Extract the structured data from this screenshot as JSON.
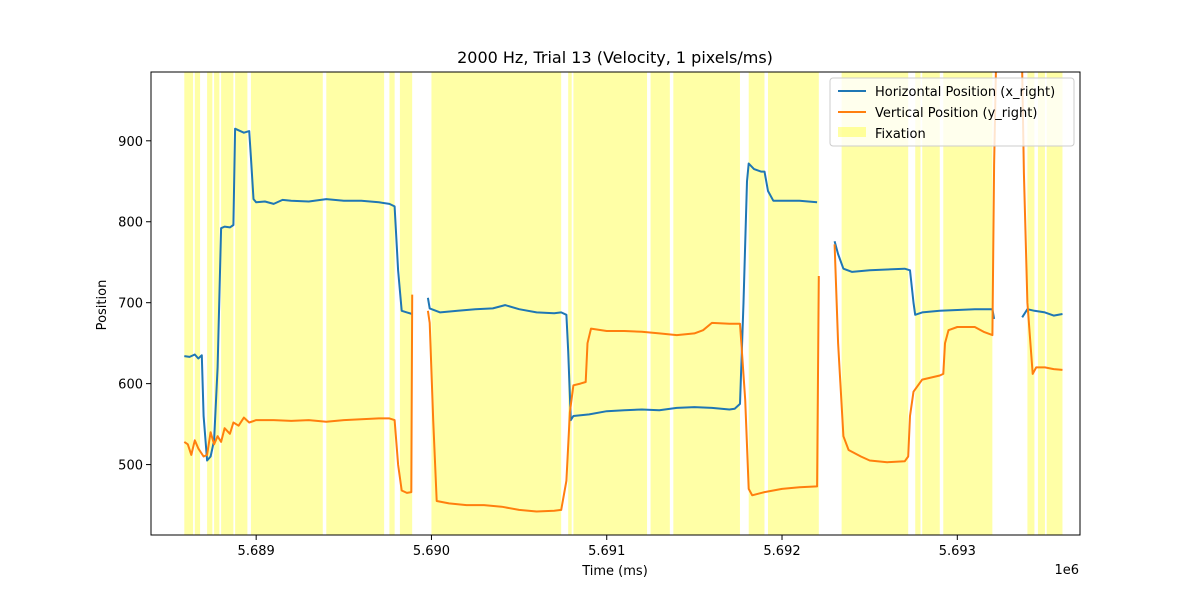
{
  "chart_data": {
    "type": "line",
    "title": "2000 Hz, Trial 13 (Velocity, 1 pixels/ms)",
    "xlabel": "Time (ms)",
    "ylabel": "Position",
    "x_offset_label": "1e6",
    "xlim": [
      5688400,
      5693700
    ],
    "ylim": [
      413,
      985
    ],
    "x_ticks": [
      5689000,
      5690000,
      5691000,
      5692000,
      5693000
    ],
    "x_tick_labels": [
      "5.689",
      "5.690",
      "5.691",
      "5.692",
      "5.693"
    ],
    "y_ticks": [
      500,
      600,
      700,
      800,
      900
    ],
    "y_tick_labels": [
      "500",
      "600",
      "700",
      "800",
      "900"
    ],
    "grid": false,
    "legend_position": "top-right",
    "series": [
      {
        "name": "Horizontal Position (x_right)",
        "color": "#1f77b4",
        "segments": [
          [
            [
              5688590,
              634
            ],
            [
              5688620,
              633
            ],
            [
              5688650,
              636
            ],
            [
              5688670,
              631
            ],
            [
              5688690,
              635
            ],
            [
              5688700,
              560
            ],
            [
              5688720,
              505
            ],
            [
              5688740,
              510
            ],
            [
              5688760,
              530
            ],
            [
              5688780,
              620
            ],
            [
              5688800,
              792
            ],
            [
              5688820,
              794
            ],
            [
              5688850,
              793
            ],
            [
              5688870,
              796
            ],
            [
              5688880,
              915
            ],
            [
              5688900,
              913
            ],
            [
              5688930,
              910
            ],
            [
              5688960,
              912
            ],
            [
              5688970,
              880
            ],
            [
              5688985,
              828
            ],
            [
              5689000,
              824
            ],
            [
              5689050,
              825
            ],
            [
              5689100,
              822
            ],
            [
              5689150,
              827
            ],
            [
              5689200,
              826
            ],
            [
              5689300,
              825
            ],
            [
              5689400,
              828
            ],
            [
              5689500,
              826
            ],
            [
              5689600,
              826
            ],
            [
              5689700,
              824
            ],
            [
              5689760,
              822
            ],
            [
              5689790,
              819
            ],
            [
              5689810,
              740
            ],
            [
              5689830,
              690
            ],
            [
              5689860,
              688
            ],
            [
              5689890,
              686
            ]
          ],
          [
            [
              5689980,
              706
            ],
            [
              5689990,
              693
            ],
            [
              5690050,
              688
            ],
            [
              5690150,
              690
            ],
            [
              5690250,
              692
            ],
            [
              5690350,
              693
            ],
            [
              5690420,
              697
            ],
            [
              5690500,
              692
            ],
            [
              5690600,
              688
            ],
            [
              5690700,
              687
            ],
            [
              5690740,
              688
            ],
            [
              5690770,
              685
            ],
            [
              5690780,
              640
            ],
            [
              5690795,
              555
            ],
            [
              5690810,
              560
            ],
            [
              5690900,
              562
            ],
            [
              5691000,
              566
            ],
            [
              5691100,
              567
            ],
            [
              5691200,
              568
            ],
            [
              5691300,
              567
            ],
            [
              5691400,
              570
            ],
            [
              5691500,
              571
            ],
            [
              5691600,
              570
            ],
            [
              5691700,
              568
            ],
            [
              5691730,
              569
            ],
            [
              5691760,
              575
            ],
            [
              5691780,
              700
            ],
            [
              5691800,
              850
            ],
            [
              5691810,
              872
            ],
            [
              5691840,
              865
            ],
            [
              5691880,
              862
            ],
            [
              5691900,
              862
            ],
            [
              5691920,
              838
            ],
            [
              5691950,
              826
            ],
            [
              5692000,
              826
            ],
            [
              5692100,
              826
            ],
            [
              5692200,
              824
            ]
          ]
        ]
      },
      {
        "name": "Vertical Position (y_right)",
        "color": "#ff7f0e",
        "segments": [
          [
            [
              5688590,
              528
            ],
            [
              5688610,
              525
            ],
            [
              5688630,
              512
            ],
            [
              5688650,
              530
            ],
            [
              5688670,
              520
            ],
            [
              5688700,
              510
            ],
            [
              5688720,
              512
            ],
            [
              5688740,
              540
            ],
            [
              5688760,
              525
            ],
            [
              5688780,
              535
            ],
            [
              5688800,
              528
            ],
            [
              5688820,
              545
            ],
            [
              5688850,
              538
            ],
            [
              5688870,
              552
            ],
            [
              5688900,
              548
            ],
            [
              5688930,
              558
            ],
            [
              5688960,
              552
            ],
            [
              5689000,
              555
            ],
            [
              5689100,
              555
            ],
            [
              5689200,
              554
            ],
            [
              5689300,
              555
            ],
            [
              5689400,
              553
            ],
            [
              5689500,
              555
            ],
            [
              5689600,
              556
            ],
            [
              5689700,
              557
            ],
            [
              5689760,
              557
            ],
            [
              5689790,
              555
            ],
            [
              5689810,
              500
            ],
            [
              5689830,
              468
            ],
            [
              5689860,
              465
            ],
            [
              5689885,
              466
            ],
            [
              5689890,
              710
            ]
          ],
          [
            [
              5689980,
              690
            ],
            [
              5689990,
              675
            ],
            [
              5690010,
              555
            ],
            [
              5690030,
              455
            ],
            [
              5690100,
              452
            ],
            [
              5690200,
              450
            ],
            [
              5690300,
              450
            ],
            [
              5690400,
              448
            ],
            [
              5690500,
              444
            ],
            [
              5690600,
              442
            ],
            [
              5690700,
              443
            ],
            [
              5690740,
              444
            ],
            [
              5690770,
              480
            ],
            [
              5690790,
              565
            ],
            [
              5690810,
              598
            ],
            [
              5690850,
              600
            ],
            [
              5690880,
              602
            ],
            [
              5690890,
              650
            ],
            [
              5690910,
              668
            ],
            [
              5691000,
              665
            ],
            [
              5691100,
              665
            ],
            [
              5691200,
              664
            ],
            [
              5691300,
              662
            ],
            [
              5691400,
              660
            ],
            [
              5691500,
              662
            ],
            [
              5691550,
              666
            ],
            [
              5691600,
              675
            ],
            [
              5691700,
              674
            ],
            [
              5691760,
              674
            ],
            [
              5691790,
              580
            ],
            [
              5691810,
              470
            ],
            [
              5691830,
              462
            ],
            [
              5691900,
              466
            ],
            [
              5692000,
              470
            ],
            [
              5692100,
              472
            ],
            [
              5692200,
              473
            ],
            [
              5692210,
              733
            ]
          ],
          [
            [
              5692300,
              772
            ],
            [
              5692320,
              650
            ],
            [
              5692350,
              535
            ],
            [
              5692380,
              518
            ],
            [
              5692450,
              510
            ],
            [
              5692500,
              505
            ],
            [
              5692600,
              503
            ],
            [
              5692700,
              504
            ],
            [
              5692720,
              510
            ],
            [
              5692730,
              560
            ],
            [
              5692750,
              590
            ],
            [
              5692800,
              605
            ],
            [
              5692900,
              610
            ],
            [
              5692920,
              612
            ],
            [
              5692930,
              650
            ],
            [
              5692950,
              666
            ],
            [
              5693000,
              670
            ],
            [
              5693100,
              670
            ],
            [
              5693150,
              664
            ],
            [
              5693200,
              660
            ],
            [
              5693210,
              870
            ],
            [
              5693220,
              985
            ]
          ],
          [
            [
              5693370,
              985
            ],
            [
              5693380,
              860
            ],
            [
              5693400,
              700
            ],
            [
              5693430,
              612
            ],
            [
              5693450,
              620
            ],
            [
              5693500,
              620
            ],
            [
              5693550,
              618
            ],
            [
              5693600,
              617
            ]
          ]
        ]
      }
    ],
    "extra_x_segments": [
      [
        [
          5692300,
          776
        ],
        [
          5692320,
          760
        ],
        [
          5692350,
          742
        ],
        [
          5692400,
          738
        ],
        [
          5692500,
          740
        ],
        [
          5692600,
          741
        ],
        [
          5692700,
          742
        ],
        [
          5692730,
          740
        ],
        [
          5692750,
          700
        ],
        [
          5692760,
          685
        ],
        [
          5692800,
          688
        ],
        [
          5692900,
          690
        ],
        [
          5693000,
          691
        ],
        [
          5693100,
          692
        ],
        [
          5693200,
          692
        ],
        [
          5693210,
          680
        ]
      ],
      [
        [
          5693370,
          682
        ],
        [
          5693400,
          692
        ],
        [
          5693440,
          690
        ],
        [
          5693500,
          688
        ],
        [
          5693550,
          684
        ],
        [
          5693600,
          686
        ]
      ]
    ],
    "fixation": {
      "name": "Fixation",
      "color": "#ffff00",
      "alpha": 0.35,
      "intervals": [
        [
          5688590,
          5688640
        ],
        [
          5688650,
          5688680
        ],
        [
          5688720,
          5688750
        ],
        [
          5688760,
          5688790
        ],
        [
          5688800,
          5688870
        ],
        [
          5688880,
          5688950
        ],
        [
          5688970,
          5689380
        ],
        [
          5689400,
          5689730
        ],
        [
          5689760,
          5689790
        ],
        [
          5689820,
          5689890
        ],
        [
          5690000,
          5690740
        ],
        [
          5690780,
          5690800
        ],
        [
          5690810,
          5691230
        ],
        [
          5691250,
          5691360
        ],
        [
          5691380,
          5691760
        ],
        [
          5691810,
          5691900
        ],
        [
          5691920,
          5692210
        ],
        [
          5692340,
          5692720
        ],
        [
          5692760,
          5692790
        ],
        [
          5692800,
          5692900
        ],
        [
          5692920,
          5693200
        ],
        [
          5693400,
          5693440
        ],
        [
          5693460,
          5693500
        ],
        [
          5693510,
          5693600
        ]
      ]
    }
  }
}
